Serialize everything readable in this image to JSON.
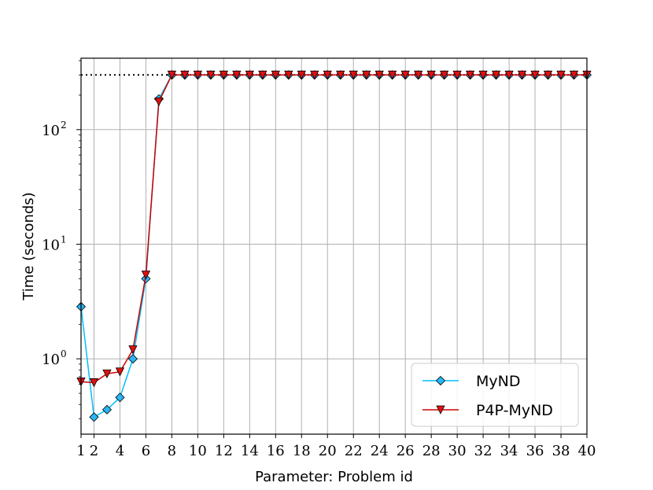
{
  "chart_data": {
    "type": "line",
    "xlabel": "Parameter: Problem id",
    "ylabel": "Time (seconds)",
    "yscale": "log",
    "xlim": [
      1,
      40
    ],
    "ylim": [
      0.22,
      420
    ],
    "grid": true,
    "legend_position": "lower-right",
    "x_ticks": [
      1,
      2,
      4,
      6,
      8,
      10,
      12,
      14,
      16,
      18,
      20,
      22,
      24,
      26,
      28,
      30,
      32,
      34,
      36,
      38,
      40
    ],
    "y_ticks": [
      {
        "value": 1,
        "base": "10",
        "exp": "0"
      },
      {
        "value": 10,
        "base": "10",
        "exp": "1"
      },
      {
        "value": 100,
        "base": "10",
        "exp": "2"
      }
    ],
    "timeout_line": {
      "value": 300,
      "style": "dotted",
      "color": "#000000"
    },
    "x": [
      1,
      2,
      3,
      4,
      5,
      6,
      7,
      8,
      9,
      10,
      11,
      12,
      13,
      14,
      15,
      16,
      17,
      18,
      19,
      20,
      21,
      22,
      23,
      24,
      25,
      26,
      27,
      28,
      29,
      30,
      31,
      32,
      33,
      34,
      35,
      36,
      37,
      38,
      39,
      40
    ],
    "series": [
      {
        "name": "MyND",
        "color": "#00bfff",
        "marker": "diamond",
        "marker_fill": "#29b6f6",
        "values": [
          2.85,
          0.31,
          0.36,
          0.46,
          1.0,
          5.0,
          185,
          300,
          300,
          300,
          300,
          300,
          300,
          300,
          300,
          300,
          300,
          300,
          300,
          300,
          300,
          300,
          300,
          300,
          300,
          300,
          300,
          300,
          300,
          300,
          300,
          300,
          300,
          300,
          300,
          300,
          300,
          300,
          300,
          300
        ]
      },
      {
        "name": "P4P-MyND",
        "color": "#cc0000",
        "marker": "triangle-down",
        "marker_fill": "#dd1111",
        "values": [
          0.63,
          0.62,
          0.74,
          0.77,
          1.2,
          5.4,
          175,
          300,
          300,
          300,
          300,
          300,
          300,
          300,
          300,
          300,
          300,
          300,
          300,
          300,
          300,
          300,
          300,
          300,
          300,
          300,
          300,
          300,
          300,
          300,
          300,
          300,
          300,
          300,
          300,
          300,
          300,
          300,
          300,
          300
        ]
      }
    ]
  }
}
